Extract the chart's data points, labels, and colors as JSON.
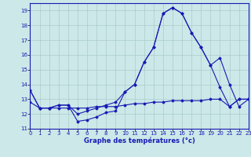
{
  "hours": [
    0,
    1,
    2,
    3,
    4,
    5,
    6,
    7,
    8,
    9,
    10,
    11,
    12,
    13,
    14,
    15,
    16,
    17,
    18,
    19,
    20,
    21,
    22,
    23
  ],
  "temp_actual": [
    13.6,
    12.4,
    12.4,
    12.6,
    12.6,
    11.5,
    11.6,
    11.8,
    12.1,
    12.2,
    13.5,
    14.0,
    15.5,
    16.5,
    18.8,
    19.2,
    18.8,
    17.5,
    16.5,
    15.3,
    13.8,
    12.5,
    13.0,
    13.0
  ],
  "temp_min": [
    12.8,
    12.4,
    12.4,
    12.4,
    12.4,
    12.4,
    12.4,
    12.5,
    12.5,
    12.5,
    12.6,
    12.7,
    12.7,
    12.8,
    12.8,
    12.9,
    12.9,
    12.9,
    12.9,
    13.0,
    13.0,
    12.5,
    13.0,
    13.0
  ],
  "temp_max": [
    13.6,
    12.4,
    12.4,
    12.6,
    12.6,
    12.0,
    12.2,
    12.4,
    12.6,
    12.8,
    13.5,
    14.0,
    15.5,
    16.5,
    18.8,
    19.2,
    18.8,
    17.5,
    16.5,
    15.3,
    15.8,
    14.0,
    12.5,
    13.0
  ],
  "line_color": "#1a1ab4",
  "bg_color": "#cce8e8",
  "grid_color": "#aacccc",
  "xlabel": "Graphe des températures (°c)",
  "ylim": [
    11,
    19.5
  ],
  "xlim": [
    0,
    23
  ],
  "yticks": [
    11,
    12,
    13,
    14,
    15,
    16,
    17,
    18,
    19
  ],
  "xticks": [
    0,
    1,
    2,
    3,
    4,
    5,
    6,
    7,
    8,
    9,
    10,
    11,
    12,
    13,
    14,
    15,
    16,
    17,
    18,
    19,
    20,
    21,
    22,
    23
  ],
  "xlabel_fontsize": 6.0,
  "tick_fontsize": 5.0
}
